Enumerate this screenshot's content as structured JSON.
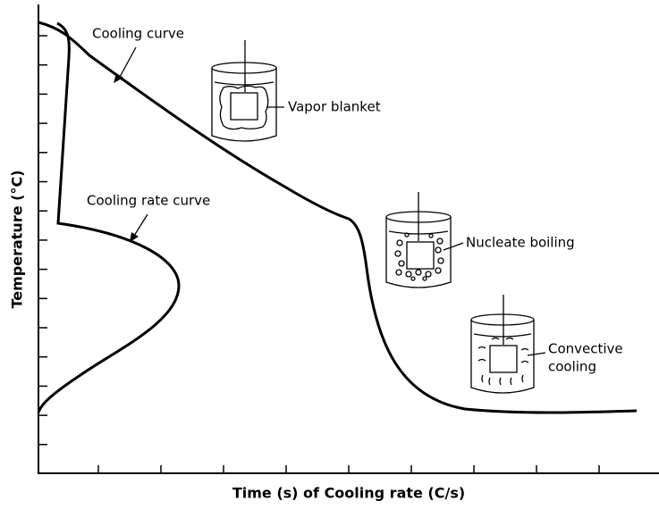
{
  "axes": {
    "y_label": "Temperature (°C)",
    "x_label": "Time (s) of Cooling rate (C/s)"
  },
  "curves": {
    "cooling_curve": "Cooling curve",
    "cooling_rate_curve": "Cooling rate curve"
  },
  "stages": [
    {
      "label": "Vapor blanket"
    },
    {
      "label": "Nucleate boiling"
    },
    {
      "label_lines": [
        "Convective",
        "cooling"
      ]
    }
  ]
}
